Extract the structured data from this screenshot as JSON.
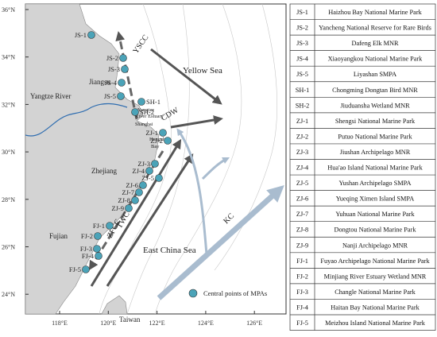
{
  "map": {
    "lat_labels": [
      "36°N",
      "34°N",
      "32°N",
      "30°N",
      "28°N",
      "26°N",
      "24°N"
    ],
    "lon_labels": [
      "118°E",
      "120°E",
      "122°E",
      "124°E",
      "126°E"
    ],
    "regions": [
      "Yellow Sea",
      "East China Sea",
      "Jiangsu",
      "Zhejiang",
      "Fujian",
      "Taiwan",
      "Yangtze River",
      "Yangtze",
      "River Estuary",
      "Shanghai",
      "Hangzhou",
      "Bay"
    ],
    "currents": [
      "YSCC",
      "CDW",
      "ZFCC",
      "TWC",
      "KC"
    ],
    "points": [
      "JS-1",
      "JS-2",
      "JS-3",
      "JS-4",
      "JS-5",
      "SH-1",
      "SH-2",
      "ZJ-1",
      "ZJ-2",
      "ZJ-3",
      "ZJ-4",
      "ZJ-5",
      "ZJ-6",
      "ZJ-7",
      "ZJ-8",
      "ZJ-9",
      "FJ-1",
      "FJ-2",
      "FJ-3",
      "FJ-4",
      "FJ-5"
    ],
    "legend": "Central points of MPAs"
  },
  "table": {
    "rows": [
      [
        "JS-1",
        "Haizhou Bay National Marine Park"
      ],
      [
        "JS-2",
        "Yancheng National Reserve for Rare Birds"
      ],
      [
        "JS-3",
        "Dafeng Elk  MNR"
      ],
      [
        "JS-4",
        "Xiaoyangkou National Marine Park"
      ],
      [
        "JS-5",
        "Liyashan SMPA"
      ],
      [
        "SH-1",
        "Chongming Dongtan Bird MNR"
      ],
      [
        "SH-2",
        "Jiuduansha Wetland MNR"
      ],
      [
        "ZJ-1",
        "Shengsi  National Marine Park"
      ],
      [
        "ZJ-2",
        "Putuo  National Marine Park"
      ],
      [
        "ZJ-3",
        "Jiushan Archipelago  MNR"
      ],
      [
        "ZJ-4",
        "Hua'ao Island National Marine Park"
      ],
      [
        "ZJ-5",
        "Yushan Archipelago SMPA"
      ],
      [
        "ZJ-6",
        "Yueqing Ximen Island SMPA"
      ],
      [
        "ZJ-7",
        "Yuhuan National Marine Park"
      ],
      [
        "ZJ-8",
        "Dongtou National Marine Park"
      ],
      [
        "ZJ-9",
        "Nanji Archipelago MNR"
      ],
      [
        "FJ-1",
        "Fuyao Archipelago National Marine Park"
      ],
      [
        "FJ-2",
        "Minjiang River Estuary Wetland MNR"
      ],
      [
        "FJ-3",
        "Changle National Marine Park"
      ],
      [
        "FJ-4",
        "Haitan Bay National Marine Park"
      ],
      [
        "FJ-5",
        "Meizhou Island National Marine Park"
      ]
    ]
  }
}
